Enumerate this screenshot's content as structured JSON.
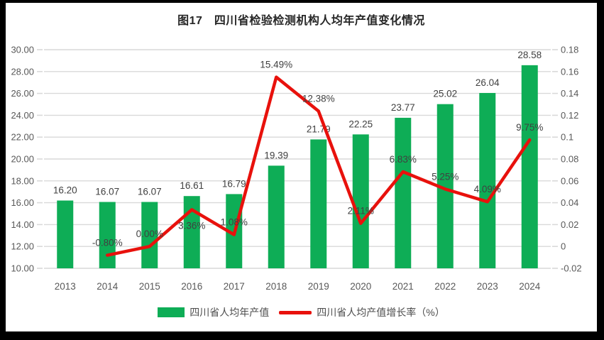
{
  "title": "图17　四川省检验检测机构人均年产值变化情况",
  "colors": {
    "bar": "#0ead56",
    "line": "#e8110c",
    "grid": "#d9d9d9",
    "axis_text": "#595959",
    "data_label": "#404040",
    "title_text": "#262626",
    "frame": "#000000",
    "background": "#ffffff"
  },
  "chart_data": {
    "type": "combo",
    "title": "图17　四川省检验检测机构人均年产值变化情况",
    "categories": [
      "2013",
      "2014",
      "2015",
      "2016",
      "2017",
      "2018",
      "2019",
      "2020",
      "2021",
      "2022",
      "2023",
      "2024"
    ],
    "series": [
      {
        "name": "四川省人均年产值",
        "type": "bar",
        "axis": "left",
        "color": "#0ead56",
        "values": [
          16.2,
          16.07,
          16.07,
          16.61,
          16.79,
          19.39,
          21.79,
          22.25,
          23.77,
          25.02,
          26.04,
          28.58
        ],
        "labels": [
          "16.20",
          "16.07",
          "16.07",
          "16.61",
          "16.79",
          "19.39",
          "21.79",
          "22.25",
          "23.77",
          "25.02",
          "26.04",
          "28.58"
        ]
      },
      {
        "name": "四川省人均产值增长率（%）",
        "type": "line",
        "axis": "right",
        "color": "#e8110c",
        "values": [
          null,
          -0.008,
          0.0,
          0.0336,
          0.0108,
          0.1549,
          0.1238,
          0.0211,
          0.0683,
          0.0525,
          0.0409,
          0.0975
        ],
        "labels": [
          "",
          "-0.80%",
          "0.00%",
          "3.36%",
          "1.08%",
          "15.49%",
          "12.38%",
          "2.11%",
          "6.83%",
          "5.25%",
          "4.09%",
          "9.75%"
        ],
        "label_positions": [
          "",
          "above",
          "above",
          "below",
          "above",
          "above",
          "above",
          "above",
          "above",
          "above",
          "above",
          "above"
        ]
      }
    ],
    "left_axis": {
      "min": 10,
      "max": 30,
      "step": 2,
      "tick_labels": [
        "30.00",
        "28.00",
        "26.00",
        "24.00",
        "22.00",
        "20.00",
        "18.00",
        "16.00",
        "14.00",
        "12.00",
        "10.00"
      ]
    },
    "right_axis": {
      "min": -0.02,
      "max": 0.18,
      "step": 0.02,
      "tick_labels": [
        "0.18",
        "0.16",
        "0.14",
        "0.12",
        "0.1",
        "0.08",
        "0.06",
        "0.04",
        "0.02",
        "0",
        "-0.02"
      ]
    },
    "grid": true,
    "legend_position": "bottom"
  },
  "legend": {
    "items": [
      {
        "label": "四川省人均年产值",
        "swatch": "bar"
      },
      {
        "label": "四川省人均产值增长率（%）",
        "swatch": "line"
      }
    ]
  }
}
